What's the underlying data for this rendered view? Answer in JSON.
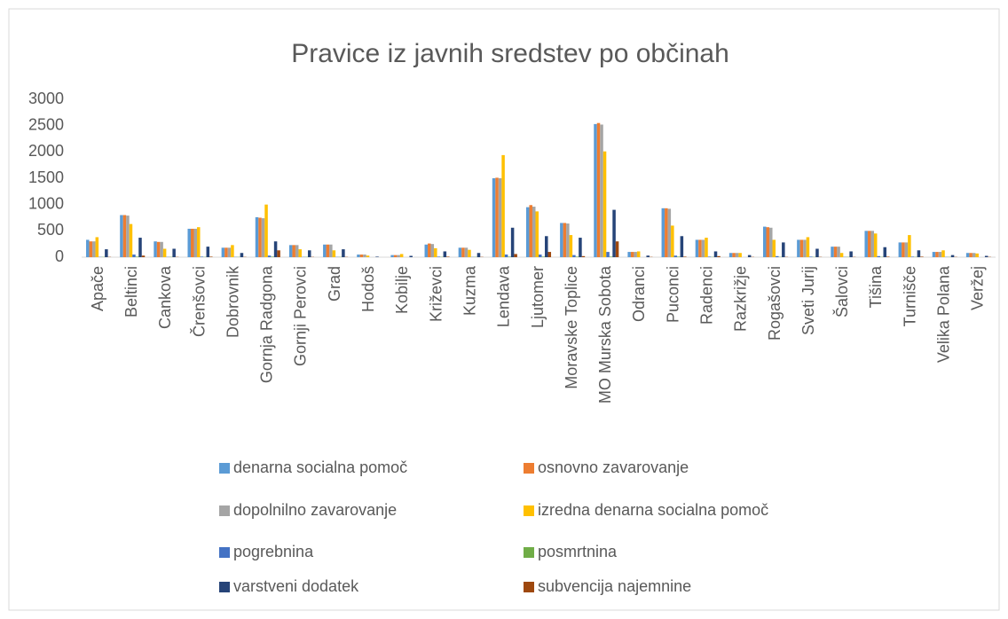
{
  "chart_data": {
    "type": "bar",
    "title": "Pravice iz javnih sredstev po občinah",
    "categories": [
      "Apače",
      "Beltinci",
      "Cankova",
      "Črenšovci",
      "Dobrovnik",
      "Gornja Radgona",
      "Gornji Perovci",
      "Grad",
      "Hodoš",
      "Kobilje",
      "Križevci",
      "Kuzma",
      "Lendava",
      "Ljutomer",
      "Moravske Toplice",
      "MO Murska Sobota",
      "Odranci",
      "Puconci",
      "Radenci",
      "Razkrižje",
      "Rogašovci",
      "Sveti Jurij",
      "Šalovci",
      "Tišina",
      "Turnišče",
      "Velika Polana",
      "Veržej"
    ],
    "series": [
      {
        "name": "denarna socialna pomoč",
        "color": "#5b9bd5",
        "values": [
          330,
          800,
          300,
          540,
          180,
          760,
          230,
          240,
          50,
          40,
          240,
          180,
          1500,
          950,
          650,
          2530,
          100,
          930,
          330,
          80,
          580,
          330,
          200,
          500,
          280,
          100,
          80
        ]
      },
      {
        "name": "osnovno zavarovanje",
        "color": "#ed7d31",
        "values": [
          300,
          800,
          290,
          540,
          180,
          750,
          230,
          240,
          50,
          40,
          260,
          180,
          1510,
          990,
          650,
          2550,
          100,
          930,
          330,
          80,
          570,
          330,
          200,
          500,
          280,
          100,
          80
        ]
      },
      {
        "name": "dopolnilno zavarovanje",
        "color": "#a5a5a5",
        "values": [
          300,
          790,
          290,
          540,
          180,
          740,
          230,
          240,
          50,
          40,
          250,
          180,
          1500,
          960,
          640,
          2520,
          100,
          920,
          330,
          80,
          560,
          330,
          200,
          500,
          280,
          100,
          80
        ]
      },
      {
        "name": "izredna denarna socialna pomoč",
        "color": "#ffc000",
        "values": [
          380,
          630,
          160,
          570,
          230,
          1000,
          150,
          130,
          30,
          60,
          170,
          140,
          1940,
          870,
          420,
          2010,
          110,
          600,
          370,
          80,
          330,
          380,
          80,
          450,
          420,
          130,
          70
        ]
      },
      {
        "name": "pogrebnina",
        "color": "#4472c4",
        "values": [
          5,
          50,
          5,
          10,
          5,
          30,
          5,
          5,
          0,
          0,
          10,
          5,
          50,
          50,
          40,
          100,
          0,
          30,
          10,
          0,
          20,
          10,
          5,
          20,
          10,
          5,
          0
        ]
      },
      {
        "name": "posmrtnina",
        "color": "#70ad47",
        "values": [
          5,
          10,
          5,
          5,
          5,
          10,
          5,
          5,
          0,
          0,
          5,
          5,
          10,
          10,
          10,
          10,
          0,
          10,
          5,
          0,
          5,
          5,
          5,
          5,
          5,
          5,
          0
        ]
      },
      {
        "name": "varstveni dodatek",
        "color": "#264478",
        "values": [
          150,
          370,
          160,
          200,
          80,
          300,
          130,
          150,
          10,
          25,
          110,
          80,
          560,
          400,
          370,
          900,
          30,
          400,
          110,
          40,
          280,
          160,
          110,
          190,
          130,
          40,
          25
        ]
      },
      {
        "name": "subvencija najemnine",
        "color": "#9e480e",
        "values": [
          5,
          30,
          5,
          10,
          5,
          130,
          5,
          5,
          0,
          0,
          10,
          5,
          60,
          100,
          20,
          300,
          5,
          10,
          20,
          5,
          5,
          5,
          5,
          10,
          10,
          5,
          5
        ]
      }
    ],
    "ylim": [
      0,
      3000
    ],
    "yticks": [
      0,
      500,
      1000,
      1500,
      2000,
      2500,
      3000
    ],
    "grid": false,
    "legend": "bottom"
  }
}
